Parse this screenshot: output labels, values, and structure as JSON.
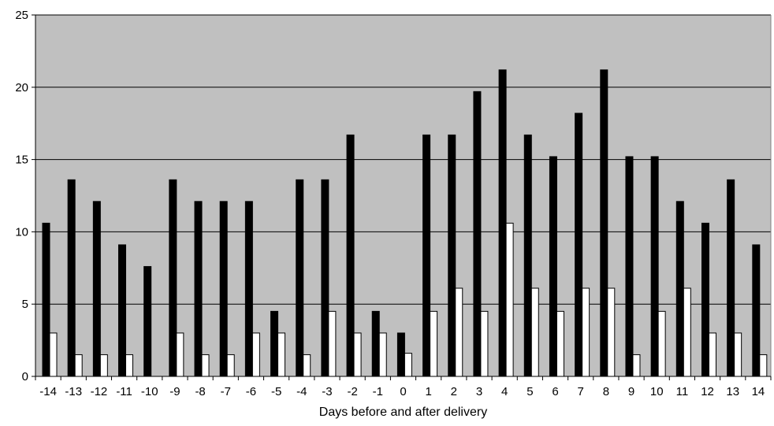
{
  "chart_data": {
    "type": "bar",
    "title": "",
    "xlabel": "Days before and after delivery",
    "ylabel": "",
    "ylim": [
      0,
      25
    ],
    "yticks": [
      0,
      5,
      10,
      15,
      20,
      25
    ],
    "grid": true,
    "legend": "none",
    "categories": [
      "-14",
      "-13",
      "-12",
      "-11",
      "-10",
      "-9",
      "-8",
      "-7",
      "-6",
      "-5",
      "-4",
      "-3",
      "-2",
      "-1",
      "0",
      "1",
      "2",
      "3",
      "4",
      "5",
      "6",
      "7",
      "8",
      "9",
      "10",
      "11",
      "12",
      "13",
      "14"
    ],
    "series": [
      {
        "color": "#000000",
        "values": [
          10.6,
          13.6,
          12.1,
          9.1,
          7.6,
          13.6,
          12.1,
          12.1,
          12.1,
          4.5,
          13.6,
          13.6,
          16.7,
          4.5,
          3.0,
          16.7,
          16.7,
          19.7,
          21.2,
          16.7,
          15.2,
          18.2,
          21.2,
          15.2,
          15.2,
          12.1,
          10.6,
          13.6,
          9.1
        ]
      },
      {
        "color": "#ffffff",
        "values": [
          3.0,
          1.5,
          1.5,
          1.5,
          0,
          3.0,
          1.5,
          1.5,
          3.0,
          3.0,
          1.5,
          4.5,
          3.0,
          3.0,
          1.6,
          4.5,
          6.1,
          4.5,
          10.6,
          6.1,
          4.5,
          6.1,
          6.1,
          1.5,
          4.5,
          6.1,
          3.0,
          3.0,
          1.5
        ]
      }
    ],
    "plot_background": "#c0c0c0"
  }
}
